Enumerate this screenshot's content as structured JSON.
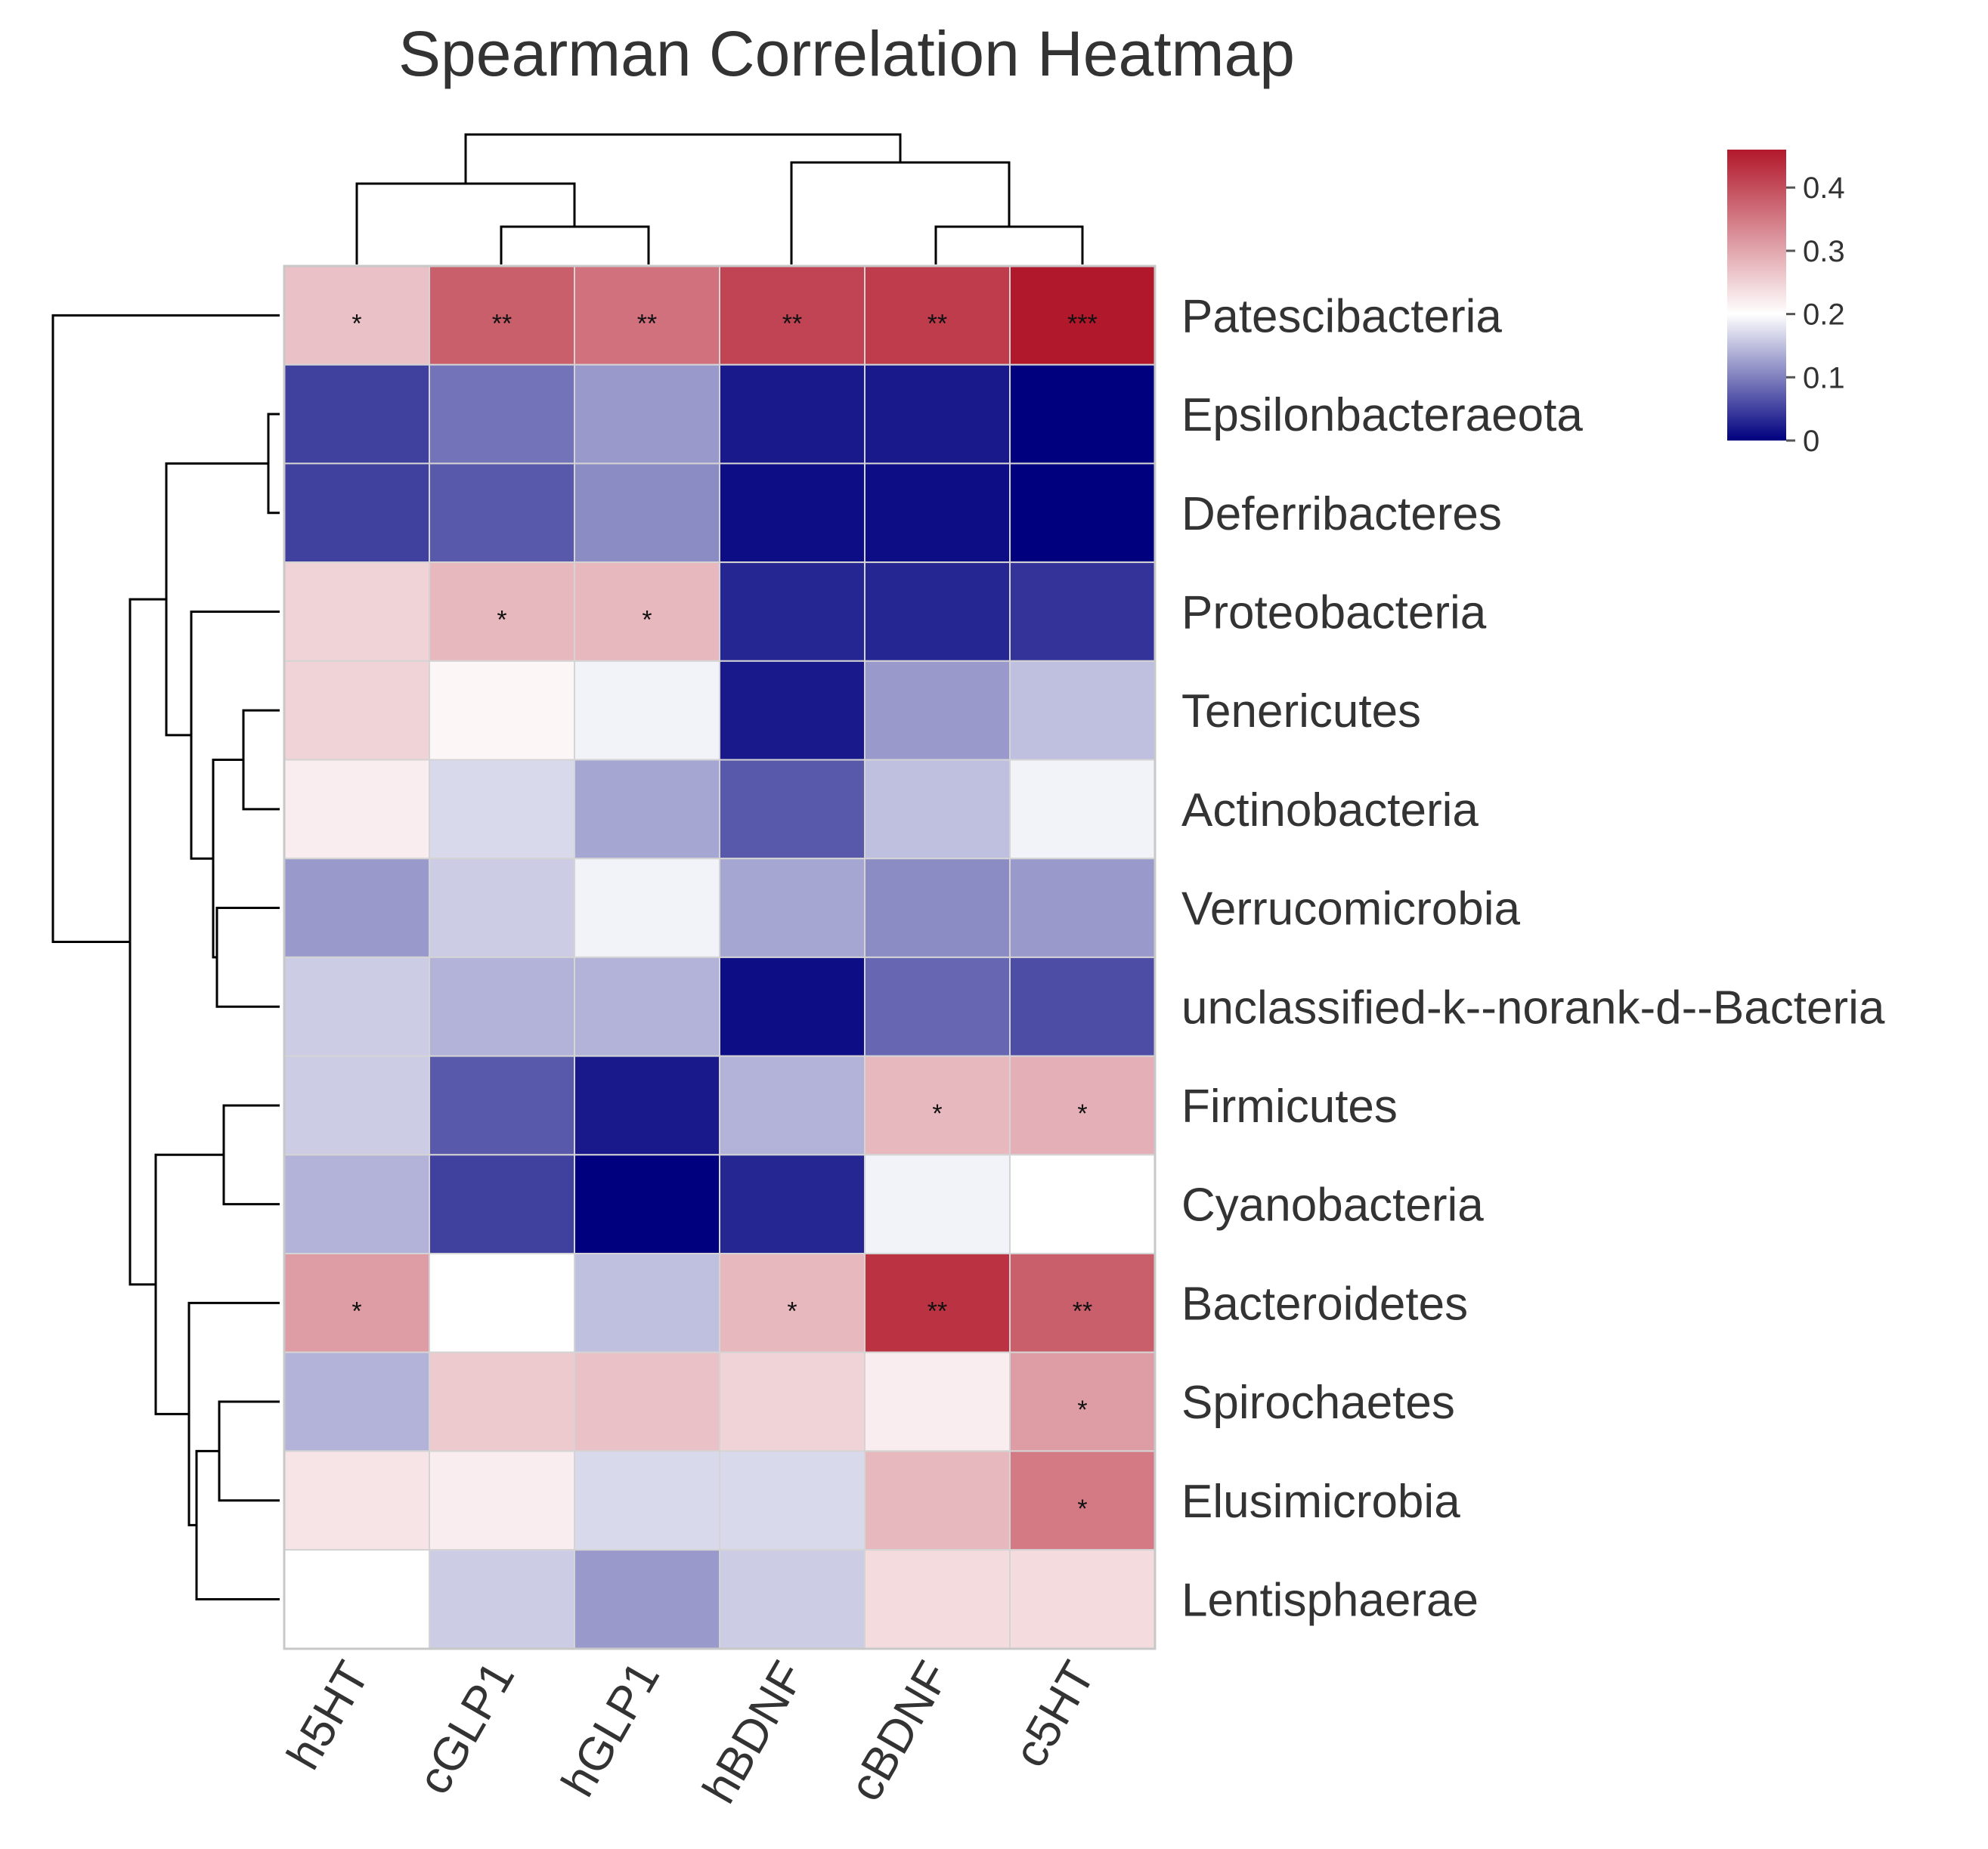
{
  "chart_data": {
    "type": "heatmap",
    "title": "Spearman Correlation Heatmap",
    "columns": [
      "h5HT",
      "cGLP1",
      "hGLP1",
      "hBDNF",
      "cBDNF",
      "c5HT"
    ],
    "rows": [
      "Patescibacteria",
      "Epsilonbacteraeota",
      "Deferribacteres",
      "Proteobacteria",
      "Tenericutes",
      "Actinobacteria",
      "Verrucomicrobia",
      "unclassified-k--norank-d--Bacteria",
      "Firmicutes",
      "Cyanobacteria",
      "Bacteroidetes",
      "Spirochaetes",
      "Elusimicrobia",
      "Lentisphaerae"
    ],
    "values": [
      [
        0.27,
        0.38,
        0.36,
        0.41,
        0.42,
        0.46
      ],
      [
        0.05,
        0.09,
        0.12,
        0.02,
        0.02,
        0.0
      ],
      [
        0.05,
        0.07,
        0.11,
        0.01,
        0.01,
        0.0
      ],
      [
        0.25,
        0.28,
        0.28,
        0.03,
        0.03,
        0.04
      ],
      [
        0.25,
        0.21,
        0.19,
        0.02,
        0.12,
        0.15
      ],
      [
        0.22,
        0.17,
        0.13,
        0.07,
        0.15,
        0.19
      ],
      [
        0.12,
        0.16,
        0.19,
        0.13,
        0.11,
        0.12
      ],
      [
        0.16,
        0.14,
        0.14,
        0.01,
        0.08,
        0.06
      ],
      [
        0.16,
        0.07,
        0.02,
        0.14,
        0.28,
        0.29
      ],
      [
        0.14,
        0.05,
        0.0,
        0.03,
        0.19,
        0.2
      ],
      [
        0.31,
        0.2,
        0.15,
        0.28,
        0.43,
        0.38
      ],
      [
        0.14,
        0.26,
        0.27,
        0.25,
        0.22,
        0.31
      ],
      [
        0.23,
        0.22,
        0.17,
        0.17,
        0.28,
        0.35
      ],
      [
        0.2,
        0.16,
        0.12,
        0.16,
        0.24,
        0.24
      ]
    ],
    "significance": [
      [
        "*",
        "**",
        "**",
        "**",
        "**",
        "***"
      ],
      [
        "",
        "",
        "",
        "",
        "",
        ""
      ],
      [
        "",
        "",
        "",
        "",
        "",
        ""
      ],
      [
        "",
        "*",
        "*",
        "",
        "",
        ""
      ],
      [
        "",
        "",
        "",
        "",
        "",
        ""
      ],
      [
        "",
        "",
        "",
        "",
        "",
        ""
      ],
      [
        "",
        "",
        "",
        "",
        "",
        ""
      ],
      [
        "",
        "",
        "",
        "",
        "",
        ""
      ],
      [
        "",
        "",
        "",
        "",
        "*",
        "*"
      ],
      [
        "",
        "",
        "",
        "",
        "",
        ""
      ],
      [
        "*",
        "",
        "",
        "*",
        "**",
        "**"
      ],
      [
        "",
        "",
        "",
        "",
        "",
        "*"
      ],
      [
        "",
        "",
        "",
        "",
        "",
        "*"
      ],
      [
        "",
        "",
        "",
        "",
        "",
        ""
      ]
    ],
    "colorbar": {
      "range": [
        0,
        0.46
      ],
      "center": 0.2,
      "ticks": [
        0,
        0.1,
        0.2,
        0.3,
        0.4
      ],
      "tick_labels": [
        "0",
        "0.1",
        "0.2",
        "0.3",
        "0.4"
      ],
      "low_color": "#00007f",
      "mid_color": "#ffffff",
      "high_color": "#b2182b",
      "placement": "top-right"
    },
    "dendrogram": {
      "columns": "h5HT joins (cGLP1, hGLP1); hBDNF joins (cBDNF, c5HT); both groups join at top",
      "rows": "clustered with leaf order as listed",
      "placement_columns": "top",
      "placement_rows": "left"
    }
  }
}
